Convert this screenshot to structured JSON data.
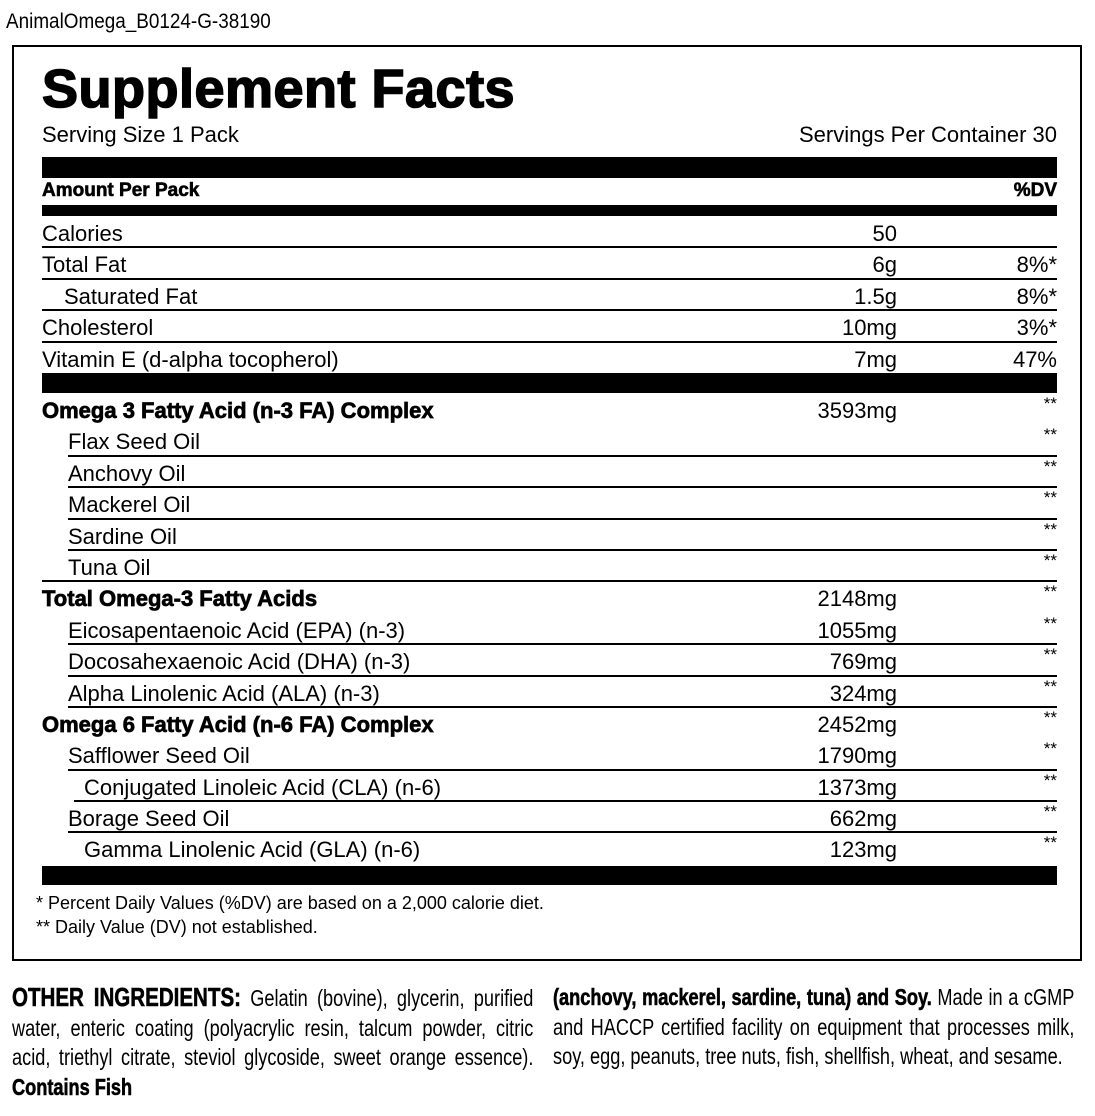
{
  "file_name": "AnimalOmega_B0124-G-38190",
  "title": "Supplement Facts",
  "serving_size": "Serving Size 1 Pack",
  "servings_per_container": "Servings Per Container 30",
  "header": {
    "amount": "Amount Per Pack",
    "dv": "%DV"
  },
  "basic_rows": [
    {
      "label": "Calories",
      "amount": "50",
      "dv": ""
    },
    {
      "label": "Total Fat",
      "amount": "6g",
      "dv": "8%*"
    },
    {
      "label": "Saturated Fat",
      "amount": "1.5g",
      "dv": "8%*"
    },
    {
      "label": "Cholesterol",
      "amount": "10mg",
      "dv": "3%*"
    },
    {
      "label": "Vitamin E (d-alpha tocopherol)",
      "amount": "7mg",
      "dv": "47%"
    }
  ],
  "fatty_acid_rows": [
    {
      "label": "Omega 3 Fatty Acid (n-3 FA) Complex",
      "amount": "3593mg",
      "dv": "**"
    },
    {
      "label": "Flax Seed Oil",
      "amount": "",
      "dv": "**"
    },
    {
      "label": "Anchovy Oil",
      "amount": "",
      "dv": "**"
    },
    {
      "label": "Mackerel Oil",
      "amount": "",
      "dv": "**"
    },
    {
      "label": "Sardine Oil",
      "amount": "",
      "dv": "**"
    },
    {
      "label": "Tuna Oil",
      "amount": "",
      "dv": "**"
    },
    {
      "label": "Total Omega-3 Fatty Acids",
      "amount": "2148mg",
      "dv": "**"
    },
    {
      "label": "Eicosapentaenoic Acid (EPA) (n-3)",
      "amount": "1055mg",
      "dv": "**"
    },
    {
      "label": "Docosahexaenoic Acid (DHA) (n-3)",
      "amount": "769mg",
      "dv": "**"
    },
    {
      "label": "Alpha Linolenic Acid (ALA) (n-3)",
      "amount": "324mg",
      "dv": "**"
    },
    {
      "label": "Omega 6 Fatty Acid (n-6 FA) Complex",
      "amount": "2452mg",
      "dv": "**"
    },
    {
      "label": "Safflower Seed Oil",
      "amount": "1790mg",
      "dv": "**"
    },
    {
      "label": "Conjugated Linoleic Acid (CLA) (n-6)",
      "amount": "1373mg",
      "dv": "**"
    },
    {
      "label": "Borage Seed Oil",
      "amount": "662mg",
      "dv": "**"
    },
    {
      "label": "Gamma Linolenic Acid (GLA) (n-6)",
      "amount": "123mg",
      "dv": "**"
    }
  ],
  "footnotes": [
    "* Percent Daily Values (%DV) are based on a 2,000 calorie diet.",
    "** Daily Value (DV) not established."
  ],
  "ingredients": {
    "heading": "OTHER INGREDIENTS:",
    "text": " Gelatin (bovine), glycerin, purified water, enteric coating (polyacrylic resin, talcum powder, citric acid, triethyl citrate, steviol glycoside, sweet orange essence). ",
    "contains_part1": "Contains Fish",
    "contains_part2": "(anchovy, mackerel, sardine, tuna) and Soy.",
    "facility": " Made in a cGMP and HACCP certified facility on equipment that processes milk, soy, egg, peanuts, tree nuts, fish, shellfish, wheat, and sesame."
  }
}
